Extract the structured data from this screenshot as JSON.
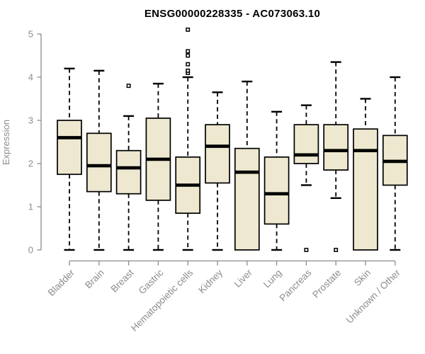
{
  "chart_data": {
    "type": "boxplot",
    "title": "ENSG00000228335 - AC073063.10",
    "xlabel": "",
    "ylabel": "Expression",
    "ylim": [
      0,
      5
    ],
    "yticks": [
      0,
      1,
      2,
      3,
      4,
      5
    ],
    "grid": false,
    "legend": "none",
    "categories": [
      "Bladder",
      "Brain",
      "Breast",
      "Gastric",
      "Hematopoietic cells",
      "Kidney",
      "Liver",
      "Lung",
      "Pancreas",
      "Prostate",
      "Skin",
      "Unknown / Other"
    ],
    "series": [
      {
        "name": "Bladder",
        "whisker_low": 0,
        "q1": 1.75,
        "median": 2.6,
        "q3": 3.0,
        "whisker_high": 4.2,
        "outliers": []
      },
      {
        "name": "Brain",
        "whisker_low": 0,
        "q1": 1.35,
        "median": 1.95,
        "q3": 2.7,
        "whisker_high": 4.15,
        "outliers": []
      },
      {
        "name": "Breast",
        "whisker_low": 0,
        "q1": 1.3,
        "median": 1.9,
        "q3": 2.3,
        "whisker_high": 3.1,
        "outliers": [
          3.8
        ]
      },
      {
        "name": "Gastric",
        "whisker_low": 0,
        "q1": 1.15,
        "median": 2.1,
        "q3": 3.05,
        "whisker_high": 3.85,
        "outliers": []
      },
      {
        "name": "Hematopoietic cells",
        "whisker_low": 0,
        "q1": 0.85,
        "median": 1.5,
        "q3": 2.15,
        "whisker_high": 4.0,
        "outliers": [
          4.1,
          4.15,
          4.3,
          4.5,
          4.6,
          5.1
        ]
      },
      {
        "name": "Kidney",
        "whisker_low": 0,
        "q1": 1.55,
        "median": 2.4,
        "q3": 2.9,
        "whisker_high": 3.65,
        "outliers": []
      },
      {
        "name": "Liver",
        "whisker_low": 0,
        "q1": 0,
        "median": 1.8,
        "q3": 2.35,
        "whisker_high": 3.9,
        "outliers": []
      },
      {
        "name": "Lung",
        "whisker_low": 0,
        "q1": 0.6,
        "median": 1.3,
        "q3": 2.15,
        "whisker_high": 3.2,
        "outliers": []
      },
      {
        "name": "Pancreas",
        "whisker_low": 1.5,
        "q1": 2.0,
        "median": 2.2,
        "q3": 2.9,
        "whisker_high": 3.35,
        "outliers": [
          0
        ]
      },
      {
        "name": "Prostate",
        "whisker_low": 1.2,
        "q1": 1.85,
        "median": 2.3,
        "q3": 2.9,
        "whisker_high": 4.35,
        "outliers": [
          0
        ]
      },
      {
        "name": "Skin",
        "whisker_low": 0,
        "q1": 0,
        "median": 2.3,
        "q3": 2.8,
        "whisker_high": 3.5,
        "outliers": []
      },
      {
        "name": "Unknown / Other",
        "whisker_low": 0,
        "q1": 1.5,
        "median": 2.05,
        "q3": 2.65,
        "whisker_high": 4.0,
        "outliers": []
      }
    ],
    "colors": {
      "box_fill": "#EDE8CF",
      "box_stroke": "#000000",
      "median": "#000000",
      "whisker": "#000000",
      "axis": "#8C8C8C",
      "text": "#8C8C8C",
      "title": "#000000",
      "background": "#FFFFFF"
    }
  }
}
